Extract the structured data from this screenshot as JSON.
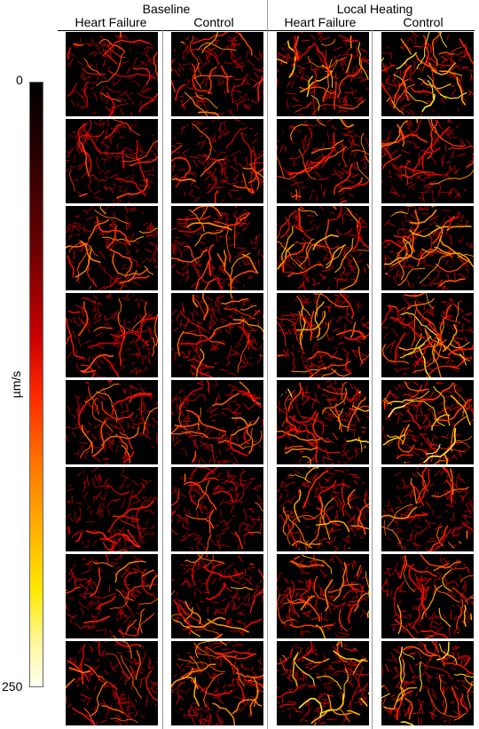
{
  "groups": [
    {
      "title": "Baseline",
      "columns": [
        "Heart Failure",
        "Control"
      ]
    },
    {
      "title": "Local Heating",
      "columns": [
        "Heart Failure",
        "Control"
      ]
    }
  ],
  "colorbar": {
    "min_label": "0",
    "max_label": "250",
    "unit": "µm/s",
    "colormap": "hot (black → red → orange → yellow → white)"
  },
  "grid": {
    "rows": 8,
    "cols": 4
  },
  "panel_intensity": [
    [
      0.35,
      0.55,
      0.8,
      0.85
    ],
    [
      0.3,
      0.45,
      0.55,
      0.5
    ],
    [
      0.55,
      0.55,
      0.65,
      0.65
    ],
    [
      0.4,
      0.55,
      0.7,
      0.85
    ],
    [
      0.5,
      0.5,
      0.95,
      0.95
    ],
    [
      0.25,
      0.45,
      0.7,
      0.55
    ],
    [
      0.5,
      0.6,
      0.7,
      0.65
    ],
    [
      0.55,
      0.7,
      0.85,
      0.85
    ]
  ]
}
